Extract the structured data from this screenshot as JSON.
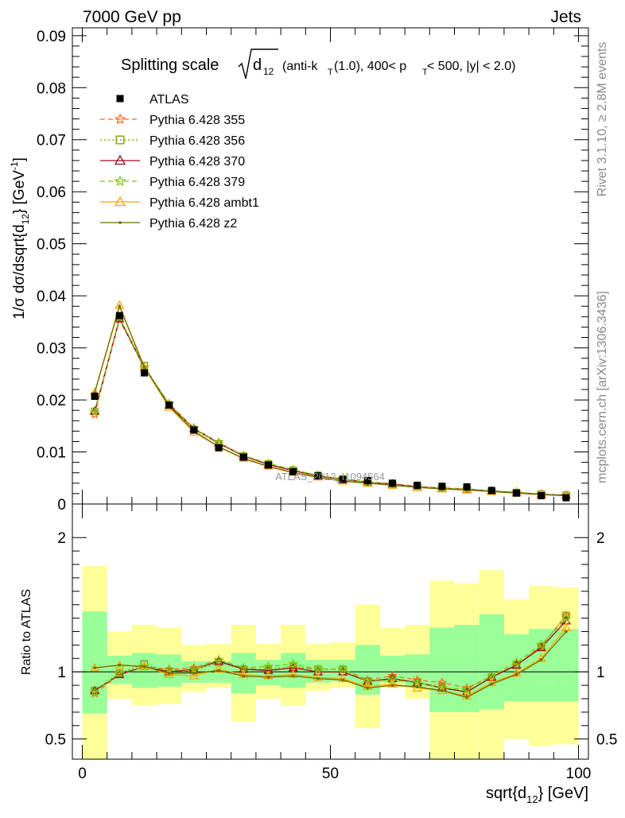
{
  "header": {
    "left": "7000 GeV pp",
    "right": "Jets"
  },
  "side_text": {
    "rivet": "Rivet 3.1.10, ≥ 2.8M events",
    "mcplots": "mcplots.cern.ch [arXiv:1306.3436]"
  },
  "chart_data": [
    {
      "type": "line",
      "title_main": "Splitting scale",
      "title_sqrt": "d",
      "title_sqrt_sub": "12",
      "title_rest_1": "(anti-k",
      "title_sub_T": "T",
      "title_rest_2": "(1.0), 400< p",
      "title_rest_3": " < 500, |y| < 2.0)",
      "ylabel": "1/σ dσ/dsqrt{d",
      "ylabel_sub": "12",
      "ylabel_end": "} [GeV",
      "ylabel_sup": "-1",
      "ylabel_close": "]",
      "watermark": "ATLAS_2012_I1094564",
      "xlim": [
        -2,
        102
      ],
      "ylim": [
        0,
        0.0915
      ],
      "y_ticks": [
        "0",
        "0.01",
        "0.02",
        "0.03",
        "0.04",
        "0.05",
        "0.06",
        "0.07",
        "0.08",
        "0.09"
      ],
      "y_tick_values": [
        0,
        0.01,
        0.02,
        0.03,
        0.04,
        0.05,
        0.06,
        0.07,
        0.08,
        0.09
      ],
      "x": [
        2.5,
        7.5,
        12.5,
        17.5,
        22.5,
        27.5,
        32.5,
        37.5,
        42.5,
        47.5,
        52.5,
        57.5,
        62.5,
        67.5,
        72.5,
        77.5,
        82.5,
        87.5,
        92.5,
        97.5
      ],
      "data": {
        "name": "ATLAS",
        "values": [
          0.0207,
          0.0362,
          0.0252,
          0.019,
          0.0142,
          0.0108,
          0.009,
          0.0075,
          0.0062,
          0.0054,
          0.0047,
          0.0045,
          0.004,
          0.0036,
          0.0034,
          0.0033,
          0.0026,
          0.0021,
          0.0016,
          0.0012
        ]
      },
      "series": [
        {
          "name": "Pythia 6.428 355",
          "color": "#ff6a1a",
          "marker": "star",
          "dash": "6,4",
          "values": [
            0.0172,
            0.0354,
            0.0262,
            0.0193,
            0.0146,
            0.0118,
            0.0093,
            0.0076,
            0.0064,
            0.0055,
            0.0048,
            0.0042,
            0.0039,
            0.0034,
            0.0031,
            0.0029,
            0.0025,
            0.0022,
            0.0019,
            0.0017
          ]
        },
        {
          "name": "Pythia 6.428 356",
          "color": "#7a9a00",
          "marker": "square-open",
          "dash": "2,3",
          "values": [
            0.0178,
            0.0358,
            0.0266,
            0.019,
            0.0143,
            0.0116,
            0.0092,
            0.0077,
            0.0065,
            0.0055,
            0.0048,
            0.0042,
            0.0038,
            0.0033,
            0.003,
            0.0028,
            0.0025,
            0.0022,
            0.0019,
            0.0017
          ]
        },
        {
          "name": "Pythia 6.428 370",
          "color": "#9a0a20",
          "marker": "triangle-open",
          "dash": "",
          "values": [
            0.0178,
            0.0356,
            0.0262,
            0.019,
            0.0145,
            0.0117,
            0.0092,
            0.0076,
            0.0064,
            0.0054,
            0.0047,
            0.0042,
            0.0038,
            0.0033,
            0.003,
            0.0028,
            0.0025,
            0.0022,
            0.0019,
            0.0017
          ]
        },
        {
          "name": "Pythia 6.428 379",
          "color": "#7ac800",
          "marker": "star",
          "dash": "6,4",
          "values": [
            0.0176,
            0.0358,
            0.0263,
            0.0192,
            0.0145,
            0.0118,
            0.0093,
            0.0078,
            0.0066,
            0.0055,
            0.0048,
            0.0042,
            0.0037,
            0.0033,
            0.003,
            0.0029,
            0.0025,
            0.0023,
            0.0019,
            0.0017
          ]
        },
        {
          "name": "Pythia 6.428 ambt1",
          "color": "#ffa500",
          "marker": "triangle-open",
          "dash": "",
          "values": [
            0.0215,
            0.0382,
            0.0262,
            0.0186,
            0.0138,
            0.011,
            0.0088,
            0.0073,
            0.0061,
            0.0052,
            0.0044,
            0.004,
            0.0036,
            0.0032,
            0.0029,
            0.0027,
            0.0024,
            0.0021,
            0.0018,
            0.0016
          ]
        },
        {
          "name": "Pythia 6.428 z2",
          "color": "#6b6b00",
          "marker": "dot",
          "dash": "",
          "values": [
            0.0214,
            0.038,
            0.0263,
            0.0188,
            0.014,
            0.011,
            0.0087,
            0.0072,
            0.006,
            0.0051,
            0.0044,
            0.004,
            0.0036,
            0.0032,
            0.0029,
            0.0027,
            0.0024,
            0.0021,
            0.0018,
            0.0016
          ]
        }
      ]
    },
    {
      "type": "line",
      "ylabel": "Ratio to ATLAS",
      "xlabel": "sqrt{d",
      "xlabel_sub": "12",
      "xlabel_end": "} [GeV]",
      "xlim": [
        -2,
        102
      ],
      "ylim": [
        0.35,
        2.25
      ],
      "y_ticks_left": [
        "0.5",
        "1",
        "2"
      ],
      "y_ticks_right": [
        "0.5",
        "1",
        "2"
      ],
      "y_tick_values": [
        0.5,
        1,
        2
      ],
      "x_ticks": [
        "0",
        "50",
        "100"
      ],
      "x_tick_values": [
        0,
        50,
        100
      ],
      "bins": [
        0,
        5,
        10,
        15,
        20,
        25,
        30,
        35,
        40,
        45,
        50,
        55,
        60,
        65,
        70,
        75,
        80,
        85,
        90,
        95,
        100
      ],
      "band_outer": {
        "color": "#ffff99",
        "lo": [
          0.35,
          0.8,
          0.75,
          0.76,
          0.85,
          0.88,
          0.63,
          0.8,
          0.75,
          0.86,
          0.88,
          0.58,
          0.88,
          0.8,
          0.35,
          0.35,
          0.35,
          0.5,
          0.45,
          0.46
        ],
        "hi": [
          1.79,
          1.3,
          1.35,
          1.33,
          1.2,
          1.21,
          1.35,
          1.21,
          1.35,
          1.21,
          1.22,
          1.5,
          1.33,
          1.35,
          1.68,
          1.66,
          1.76,
          1.54,
          1.64,
          1.63
        ]
      },
      "band_inner": {
        "color": "#99ff99",
        "lo": [
          0.69,
          0.91,
          0.88,
          0.89,
          0.92,
          0.92,
          0.84,
          0.9,
          0.88,
          0.92,
          0.93,
          0.83,
          0.92,
          0.89,
          0.7,
          0.7,
          0.72,
          0.78,
          0.78,
          0.78
        ],
        "hi": [
          1.45,
          1.12,
          1.14,
          1.13,
          1.08,
          1.08,
          1.14,
          1.09,
          1.14,
          1.09,
          1.09,
          1.2,
          1.12,
          1.13,
          1.33,
          1.35,
          1.43,
          1.28,
          1.32,
          1.32
        ]
      },
      "x": [
        2.5,
        7.5,
        12.5,
        17.5,
        22.5,
        27.5,
        32.5,
        37.5,
        42.5,
        47.5,
        52.5,
        57.5,
        62.5,
        67.5,
        72.5,
        77.5,
        82.5,
        87.5,
        92.5,
        97.5
      ],
      "series": [
        {
          "name": "Pythia 6.428 355",
          "color": "#ff6a1a",
          "marker": "star",
          "dash": "6,4",
          "values": [
            0.84,
            0.98,
            1.04,
            1.02,
            1.03,
            1.09,
            1.03,
            1.01,
            1.03,
            1.02,
            1.02,
            0.94,
            0.97,
            0.94,
            0.92,
            0.88,
            0.97,
            1.05,
            1.19,
            1.42
          ]
        },
        {
          "name": "Pythia 6.428 356",
          "color": "#7a9a00",
          "marker": "square-open",
          "dash": "2,3",
          "values": [
            0.86,
            0.99,
            1.06,
            1.0,
            1.01,
            1.07,
            1.02,
            1.02,
            1.04,
            1.02,
            1.02,
            0.93,
            0.95,
            0.92,
            0.89,
            0.85,
            0.96,
            1.05,
            1.19,
            1.42
          ]
        },
        {
          "name": "Pythia 6.428 370",
          "color": "#9a0a20",
          "marker": "triangle-open",
          "dash": "",
          "values": [
            0.86,
            0.98,
            1.04,
            1.0,
            1.02,
            1.08,
            1.02,
            1.01,
            1.03,
            1.0,
            1.0,
            0.93,
            0.95,
            0.92,
            0.88,
            0.85,
            0.96,
            1.05,
            1.18,
            1.38
          ]
        },
        {
          "name": "Pythia 6.428 379",
          "color": "#7ac800",
          "marker": "star",
          "dash": "6,4",
          "values": [
            0.85,
            0.99,
            1.04,
            1.01,
            1.02,
            1.09,
            1.03,
            1.04,
            1.06,
            1.02,
            1.02,
            0.93,
            0.94,
            0.92,
            0.88,
            0.87,
            0.97,
            1.07,
            1.2,
            1.4
          ]
        },
        {
          "name": "Pythia 6.428 ambt1",
          "color": "#ffa500",
          "marker": "triangle-open",
          "dash": "",
          "values": [
            1.03,
            1.05,
            1.04,
            0.98,
            0.97,
            1.02,
            0.98,
            0.97,
            0.98,
            0.96,
            0.95,
            0.89,
            0.91,
            0.88,
            0.86,
            0.82,
            0.92,
            0.99,
            1.1,
            1.33
          ]
        },
        {
          "name": "Pythia 6.428 z2",
          "color": "#6b6b00",
          "marker": "dot",
          "dash": "",
          "values": [
            1.03,
            1.05,
            1.04,
            0.99,
            0.99,
            1.01,
            0.97,
            0.96,
            0.97,
            0.95,
            0.94,
            0.88,
            0.9,
            0.89,
            0.86,
            0.81,
            0.91,
            0.98,
            1.09,
            1.3
          ]
        }
      ]
    }
  ]
}
